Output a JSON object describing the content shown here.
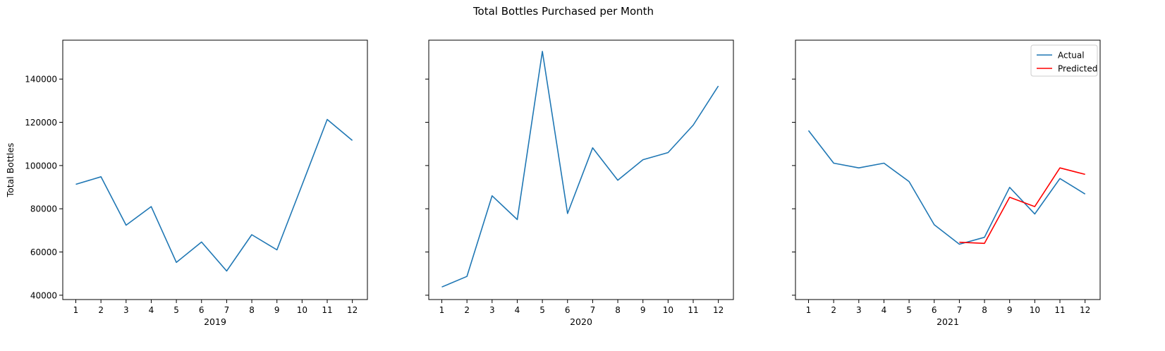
{
  "figure": {
    "title": "Total Bottles Purchased per Month",
    "ylabel": "Total Bottles"
  },
  "colors": {
    "actual": "#1f77b4",
    "predicted": "#ff0000",
    "axes": "#000000"
  },
  "chart_data": [
    {
      "type": "line",
      "xlabel": "2019",
      "ylabel": "Total Bottles",
      "categories": [
        "1",
        "2",
        "3",
        "4",
        "5",
        "6",
        "7",
        "8",
        "9",
        "10",
        "11",
        "12"
      ],
      "yticks": [
        40000,
        60000,
        80000,
        100000,
        120000,
        140000
      ],
      "ylim": [
        38000,
        158000
      ],
      "legend": false,
      "series": [
        {
          "key": "actual",
          "values": [
            91300,
            94800,
            72400,
            81000,
            55200,
            64600,
            51200,
            68000,
            61000,
            91000,
            121300,
            111600
          ]
        }
      ]
    },
    {
      "type": "line",
      "xlabel": "2020",
      "ylabel": "",
      "categories": [
        "1",
        "2",
        "3",
        "4",
        "5",
        "6",
        "7",
        "8",
        "9",
        "10",
        "11",
        "12"
      ],
      "yticks": [
        40000,
        60000,
        80000,
        100000,
        120000,
        140000
      ],
      "ylim": [
        38000,
        158000
      ],
      "legend": false,
      "series": [
        {
          "key": "actual",
          "values": [
            43800,
            48700,
            86000,
            75000,
            152800,
            77800,
            108200,
            93200,
            102700,
            106000,
            118700,
            136800
          ]
        }
      ]
    },
    {
      "type": "line",
      "xlabel": "2021",
      "ylabel": "",
      "categories": [
        "1",
        "2",
        "3",
        "4",
        "5",
        "6",
        "7",
        "8",
        "9",
        "10",
        "11",
        "12"
      ],
      "yticks": [
        40000,
        60000,
        80000,
        100000,
        120000,
        140000
      ],
      "ylim": [
        38000,
        158000
      ],
      "legend": "top-right",
      "series": [
        {
          "key": "actual",
          "name": "Actual",
          "x": [
            1,
            2,
            3,
            4,
            5,
            6,
            7,
            8,
            9,
            10,
            11,
            12
          ],
          "values": [
            116200,
            101100,
            98900,
            101100,
            92600,
            72600,
            63600,
            66800,
            89900,
            77600,
            94000,
            86800
          ]
        },
        {
          "key": "predicted",
          "name": "Predicted",
          "x": [
            7,
            8,
            9,
            10,
            11,
            12
          ],
          "values": [
            64500,
            64000,
            85300,
            81000,
            98900,
            95900
          ]
        }
      ]
    }
  ]
}
